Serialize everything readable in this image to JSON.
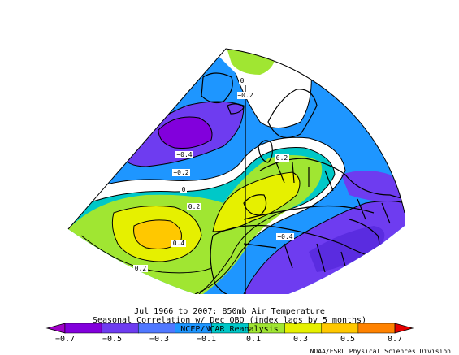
{
  "titles": {
    "line1": "Jul 1966 to 2007: 850mb Air Temperature",
    "line2": "Seasonal Correlation w/ Dec QBO (index lags by 5 months)",
    "line3": "NCEP/NCAR Reanalysis"
  },
  "colorbar": {
    "colors": [
      "#a000c8",
      "#8200dc",
      "#6e3cf0",
      "#5078ff",
      "#1e96ff",
      "#00c8c8",
      "#a0e632",
      "#e6f000",
      "#ffc800",
      "#ff8200",
      "#e60000"
    ],
    "ticks": [
      "−0.7",
      "−0.5",
      "−0.3",
      "−0.1",
      "0.1",
      "0.3",
      "0.5",
      "0.7"
    ]
  },
  "contour_labels": [
    {
      "text": "0"
    },
    {
      "text": "−0.2"
    },
    {
      "text": "−0.4"
    },
    {
      "text": "−0.2"
    },
    {
      "text": "0"
    },
    {
      "text": "0.2"
    },
    {
      "text": "0.4"
    },
    {
      "text": "0.2"
    },
    {
      "text": "0.2"
    },
    {
      "text": "−0.4"
    }
  ],
  "credit": "NOAA/ESRL Physical Sciences Division"
}
